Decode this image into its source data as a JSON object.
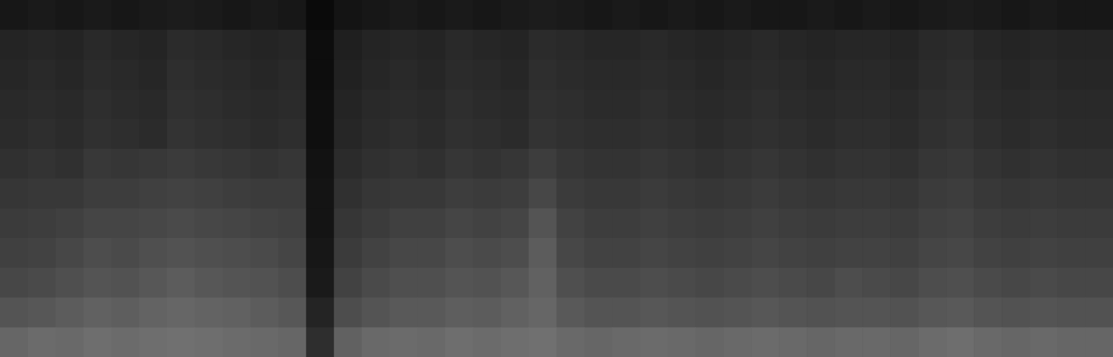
{
  "chart_data": {
    "type": "heatmap",
    "tick_labels": false,
    "color": "#ffffff",
    "xlim": [
      0,
      40
    ],
    "ylim": [
      0,
      12
    ],
    "zlim": [
      0,
      100
    ],
    "cells": [
      [
        9,
        10,
        9,
        10,
        9,
        10,
        11,
        10,
        9,
        10,
        9,
        4,
        8,
        9,
        10,
        9,
        10,
        9,
        10,
        11,
        10,
        9,
        10,
        9,
        10,
        9,
        10,
        9,
        9,
        10,
        9,
        10,
        9,
        10,
        11,
        10,
        9,
        10,
        9,
        9
      ],
      [
        14,
        15,
        14,
        16,
        15,
        14,
        17,
        16,
        15,
        14,
        15,
        5,
        12,
        14,
        15,
        14,
        16,
        15,
        14,
        17,
        16,
        15,
        15,
        16,
        15,
        14,
        15,
        16,
        15,
        14,
        15,
        15,
        14,
        16,
        17,
        15,
        14,
        15,
        14,
        14
      ],
      [
        15,
        16,
        15,
        17,
        16,
        15,
        18,
        17,
        16,
        15,
        16,
        5,
        13,
        15,
        16,
        15,
        17,
        16,
        15,
        18,
        17,
        16,
        16,
        17,
        16,
        15,
        16,
        17,
        16,
        15,
        16,
        16,
        15,
        17,
        18,
        16,
        15,
        16,
        15,
        15
      ],
      [
        16,
        17,
        16,
        18,
        17,
        16,
        19,
        18,
        17,
        16,
        17,
        6,
        14,
        16,
        17,
        16,
        18,
        17,
        16,
        19,
        18,
        17,
        17,
        18,
        17,
        16,
        17,
        18,
        17,
        16,
        17,
        17,
        16,
        18,
        19,
        17,
        16,
        17,
        16,
        16
      ],
      [
        17,
        18,
        17,
        19,
        18,
        17,
        20,
        19,
        18,
        17,
        18,
        6,
        15,
        17,
        18,
        17,
        19,
        18,
        17,
        20,
        19,
        18,
        18,
        19,
        18,
        17,
        18,
        19,
        18,
        17,
        18,
        18,
        17,
        19,
        20,
        18,
        17,
        18,
        17,
        17
      ],
      [
        19,
        20,
        19,
        22,
        21,
        22,
        23,
        22,
        21,
        20,
        21,
        7,
        17,
        19,
        20,
        19,
        21,
        20,
        21,
        24,
        21,
        20,
        20,
        21,
        20,
        19,
        20,
        21,
        20,
        19,
        20,
        20,
        19,
        21,
        22,
        20,
        19,
        20,
        19,
        19
      ],
      [
        21,
        22,
        22,
        24,
        24,
        25,
        26,
        25,
        24,
        23,
        23,
        8,
        19,
        21,
        22,
        22,
        24,
        23,
        24,
        28,
        23,
        22,
        22,
        23,
        22,
        21,
        22,
        23,
        22,
        21,
        22,
        22,
        21,
        23,
        24,
        22,
        21,
        22,
        21,
        21
      ],
      [
        23,
        24,
        25,
        27,
        27,
        28,
        29,
        28,
        27,
        26,
        25,
        8,
        21,
        23,
        25,
        25,
        27,
        26,
        27,
        33,
        26,
        24,
        24,
        25,
        24,
        23,
        24,
        25,
        24,
        23,
        24,
        24,
        23,
        25,
        26,
        24,
        23,
        24,
        23,
        23
      ],
      [
        25,
        26,
        28,
        30,
        29,
        31,
        32,
        31,
        30,
        29,
        27,
        9,
        23,
        26,
        28,
        28,
        30,
        29,
        30,
        36,
        28,
        26,
        26,
        27,
        26,
        25,
        26,
        27,
        26,
        25,
        26,
        26,
        25,
        27,
        28,
        26,
        25,
        26,
        25,
        25
      ],
      [
        28,
        29,
        31,
        33,
        32,
        34,
        36,
        34,
        33,
        32,
        30,
        10,
        26,
        29,
        31,
        31,
        33,
        32,
        34,
        38,
        31,
        29,
        29,
        30,
        29,
        28,
        29,
        30,
        29,
        28,
        30,
        29,
        28,
        30,
        31,
        29,
        28,
        29,
        28,
        28
      ],
      [
        33,
        34,
        36,
        38,
        37,
        39,
        40,
        39,
        38,
        36,
        34,
        14,
        30,
        33,
        35,
        35,
        37,
        36,
        38,
        40,
        35,
        33,
        33,
        34,
        33,
        32,
        33,
        34,
        33,
        32,
        33,
        33,
        32,
        34,
        35,
        33,
        32,
        33,
        32,
        32
      ],
      [
        40,
        42,
        41,
        43,
        42,
        43,
        44,
        43,
        42,
        41,
        40,
        18,
        38,
        41,
        42,
        41,
        43,
        42,
        43,
        44,
        41,
        40,
        41,
        42,
        41,
        40,
        41,
        42,
        41,
        40,
        41,
        41,
        40,
        42,
        43,
        41,
        40,
        41,
        40,
        40
      ]
    ]
  }
}
